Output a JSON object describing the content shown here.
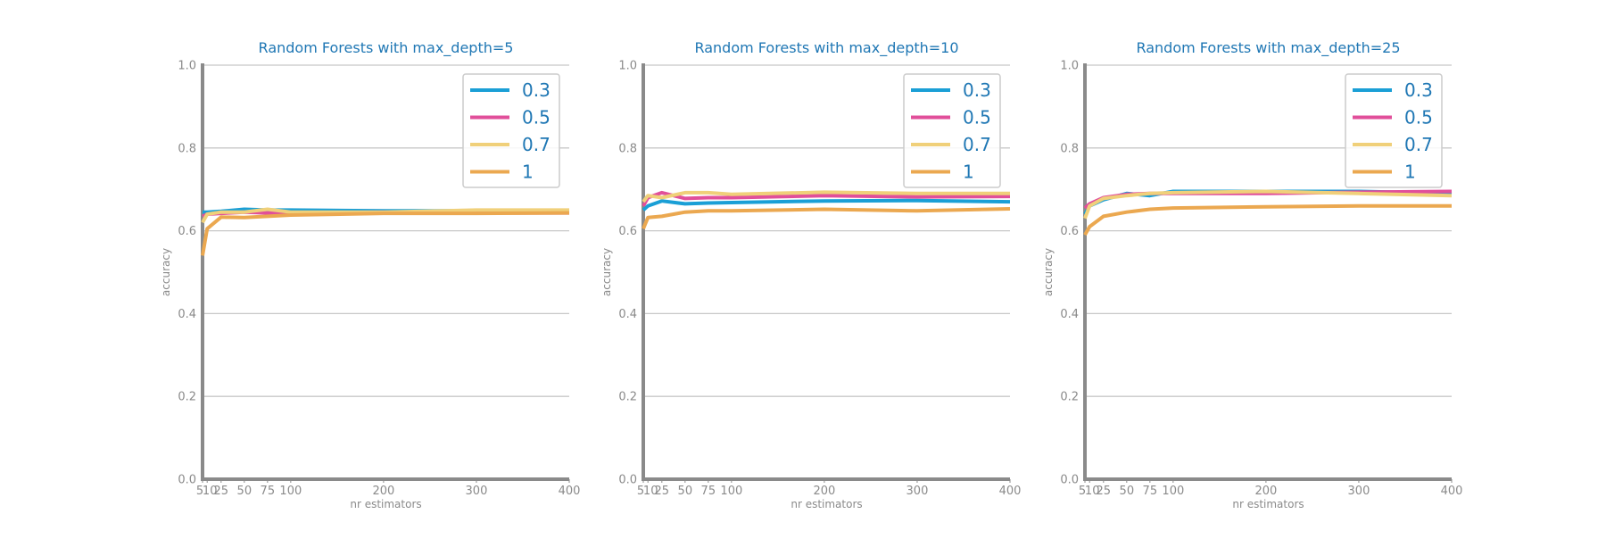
{
  "chart_data": [
    {
      "type": "line",
      "title": "Random Forests with max_depth=5",
      "xlabel": "nr estimators",
      "ylabel": "accuracy",
      "x": [
        5,
        10,
        25,
        50,
        75,
        100,
        200,
        300,
        400
      ],
      "xticks": [
        5,
        10,
        25,
        50,
        75,
        100,
        200,
        300,
        400
      ],
      "xtick_labels": [
        "5",
        "10",
        "25",
        "50",
        "75",
        "100",
        "200",
        "300",
        "400"
      ],
      "xlim": [
        5,
        400
      ],
      "ylim": [
        0,
        1
      ],
      "yticks": [
        0.0,
        0.2,
        0.4,
        0.6,
        0.8,
        1.0
      ],
      "ytick_labels": [
        "0.0",
        "0.2",
        "0.4",
        "0.6",
        "0.8",
        "1.0"
      ],
      "grid": "horizontal",
      "legend_position": "top-right",
      "series": [
        {
          "name": "0.3",
          "color": "#1a9fd6",
          "values": [
            0.645,
            0.645,
            0.647,
            0.652,
            0.65,
            0.65,
            0.648,
            0.648,
            0.645
          ]
        },
        {
          "name": "0.5",
          "color": "#e14f9a",
          "values": [
            0.635,
            0.64,
            0.642,
            0.645,
            0.643,
            0.643,
            0.645,
            0.643,
            0.643
          ]
        },
        {
          "name": "0.7",
          "color": "#f0d07a",
          "values": [
            0.62,
            0.64,
            0.645,
            0.645,
            0.652,
            0.645,
            0.645,
            0.65,
            0.65
          ]
        },
        {
          "name": "1",
          "color": "#eba850",
          "values": [
            0.54,
            0.605,
            0.633,
            0.632,
            0.635,
            0.638,
            0.642,
            0.642,
            0.643
          ]
        }
      ]
    },
    {
      "type": "line",
      "title": "Random Forests with max_depth=10",
      "xlabel": "nr estimators",
      "ylabel": "accuracy",
      "x": [
        5,
        10,
        25,
        50,
        75,
        100,
        200,
        300,
        400
      ],
      "xticks": [
        5,
        10,
        25,
        50,
        75,
        100,
        200,
        300,
        400
      ],
      "xtick_labels": [
        "5",
        "10",
        "25",
        "50",
        "75",
        "100",
        "200",
        "300",
        "400"
      ],
      "xlim": [
        5,
        400
      ],
      "ylim": [
        0,
        1
      ],
      "yticks": [
        0.0,
        0.2,
        0.4,
        0.6,
        0.8,
        1.0
      ],
      "ytick_labels": [
        "0.0",
        "0.2",
        "0.4",
        "0.6",
        "0.8",
        "1.0"
      ],
      "grid": "horizontal",
      "legend_position": "top-right",
      "series": [
        {
          "name": "0.3",
          "color": "#1a9fd6",
          "values": [
            0.65,
            0.66,
            0.672,
            0.665,
            0.667,
            0.668,
            0.672,
            0.673,
            0.67
          ]
        },
        {
          "name": "0.5",
          "color": "#e14f9a",
          "values": [
            0.66,
            0.68,
            0.692,
            0.678,
            0.68,
            0.68,
            0.685,
            0.682,
            0.683
          ]
        },
        {
          "name": "0.7",
          "color": "#f0d07a",
          "values": [
            0.67,
            0.685,
            0.68,
            0.692,
            0.692,
            0.688,
            0.693,
            0.69,
            0.69
          ]
        },
        {
          "name": "1",
          "color": "#eba850",
          "values": [
            0.605,
            0.632,
            0.635,
            0.645,
            0.648,
            0.648,
            0.652,
            0.648,
            0.653
          ]
        }
      ]
    },
    {
      "type": "line",
      "title": "Random Forests with max_depth=25",
      "xlabel": "nr estimators",
      "ylabel": "accuracy",
      "x": [
        5,
        10,
        25,
        50,
        75,
        100,
        200,
        300,
        400
      ],
      "xticks": [
        5,
        10,
        25,
        50,
        75,
        100,
        200,
        300,
        400
      ],
      "xtick_labels": [
        "5",
        "10",
        "25",
        "50",
        "75",
        "100",
        "200",
        "300",
        "400"
      ],
      "xlim": [
        5,
        400
      ],
      "ylim": [
        0,
        1
      ],
      "yticks": [
        0.0,
        0.2,
        0.4,
        0.6,
        0.8,
        1.0
      ],
      "ytick_labels": [
        "0.0",
        "0.2",
        "0.4",
        "0.6",
        "0.8",
        "1.0"
      ],
      "grid": "horizontal",
      "legend_position": "top-right",
      "series": [
        {
          "name": "0.3",
          "color": "#1a9fd6",
          "values": [
            0.64,
            0.66,
            0.675,
            0.69,
            0.685,
            0.695,
            0.695,
            0.695,
            0.69
          ]
        },
        {
          "name": "0.5",
          "color": "#e14f9a",
          "values": [
            0.655,
            0.665,
            0.68,
            0.688,
            0.69,
            0.69,
            0.69,
            0.693,
            0.695
          ]
        },
        {
          "name": "0.7",
          "color": "#f0d07a",
          "values": [
            0.63,
            0.66,
            0.678,
            0.685,
            0.69,
            0.692,
            0.695,
            0.69,
            0.685
          ]
        },
        {
          "name": "1",
          "color": "#eba850",
          "values": [
            0.59,
            0.61,
            0.635,
            0.645,
            0.652,
            0.655,
            0.658,
            0.66,
            0.66
          ]
        }
      ]
    }
  ]
}
